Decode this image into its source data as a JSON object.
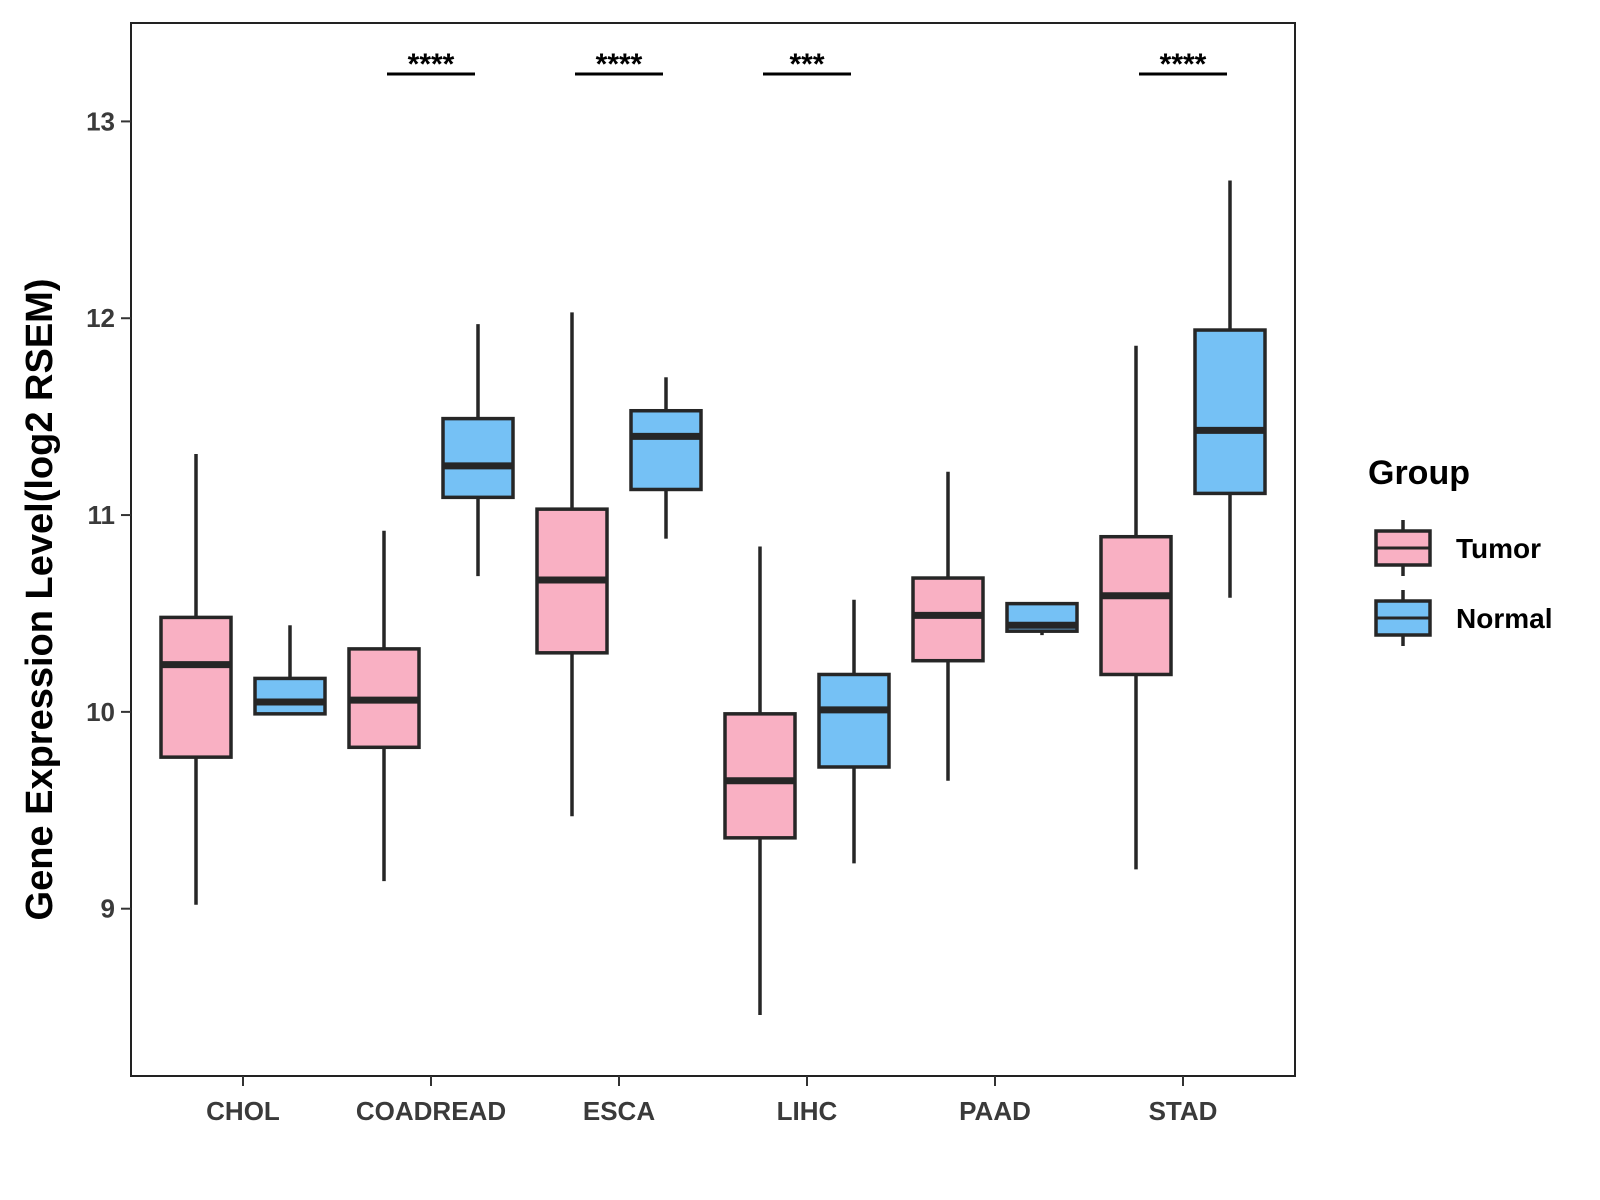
{
  "chart_data": {
    "type": "boxplot",
    "ylabel": "Gene Expression Level(log2 RSEM)",
    "xlabel": "",
    "ylim": [
      8.15,
      13.5
    ],
    "yticks": [
      9,
      10,
      11,
      12,
      13
    ],
    "categories": [
      "CHOL",
      "COADREAD",
      "ESCA",
      "LIHC",
      "PAAD",
      "STAD"
    ],
    "legend": {
      "title": "Group",
      "position": "right",
      "entries": [
        {
          "name": "Tumor",
          "color": "#f9b0c3"
        },
        {
          "name": "Normal",
          "color": "#75c1f5"
        }
      ]
    },
    "series": [
      {
        "name": "Tumor",
        "color": "#f9b0c3",
        "boxes": [
          {
            "category": "CHOL",
            "min": 9.02,
            "q1": 9.77,
            "median": 10.24,
            "q3": 10.48,
            "max": 11.31
          },
          {
            "category": "COADREAD",
            "min": 9.14,
            "q1": 9.82,
            "median": 10.06,
            "q3": 10.32,
            "max": 10.92
          },
          {
            "category": "ESCA",
            "min": 9.47,
            "q1": 10.3,
            "median": 10.67,
            "q3": 11.03,
            "max": 12.03
          },
          {
            "category": "LIHC",
            "min": 8.46,
            "q1": 9.36,
            "median": 9.65,
            "q3": 9.99,
            "max": 10.84
          },
          {
            "category": "PAAD",
            "min": 9.65,
            "q1": 10.26,
            "median": 10.49,
            "q3": 10.68,
            "max": 11.22
          },
          {
            "category": "STAD",
            "min": 9.2,
            "q1": 10.19,
            "median": 10.59,
            "q3": 10.89,
            "max": 11.86
          }
        ]
      },
      {
        "name": "Normal",
        "color": "#75c1f5",
        "boxes": [
          {
            "category": "CHOL",
            "min": 9.99,
            "q1": 9.99,
            "median": 10.05,
            "q3": 10.17,
            "max": 10.44
          },
          {
            "category": "COADREAD",
            "min": 10.69,
            "q1": 11.09,
            "median": 11.25,
            "q3": 11.49,
            "max": 11.97
          },
          {
            "category": "ESCA",
            "min": 10.88,
            "q1": 11.13,
            "median": 11.4,
            "q3": 11.53,
            "max": 11.7
          },
          {
            "category": "LIHC",
            "min": 9.23,
            "q1": 9.72,
            "median": 10.01,
            "q3": 10.19,
            "max": 10.57
          },
          {
            "category": "PAAD",
            "min": 10.39,
            "q1": 10.41,
            "median": 10.44,
            "q3": 10.55,
            "max": 10.55
          },
          {
            "category": "STAD",
            "min": 10.58,
            "q1": 11.11,
            "median": 11.43,
            "q3": 11.94,
            "max": 12.7
          }
        ]
      }
    ],
    "significance": [
      {
        "category": "COADREAD",
        "label": "****"
      },
      {
        "category": "ESCA",
        "label": "****"
      },
      {
        "category": "LIHC",
        "label": "***"
      },
      {
        "category": "STAD",
        "label": "****"
      }
    ]
  }
}
